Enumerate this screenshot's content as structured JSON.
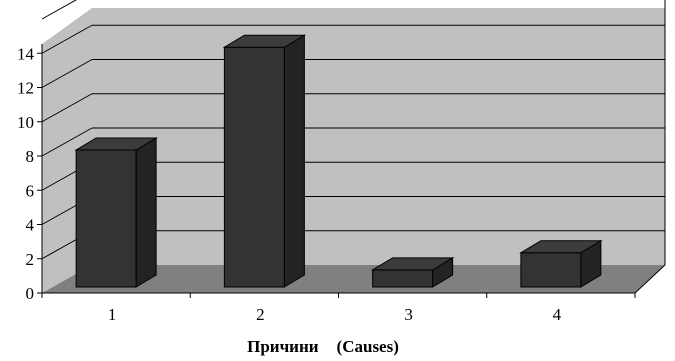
{
  "chart_data": {
    "type": "bar",
    "categories": [
      "1",
      "2",
      "3",
      "4"
    ],
    "values": [
      8,
      14,
      1,
      2
    ],
    "ylim": [
      0,
      16
    ],
    "yticks": [
      0,
      2,
      4,
      6,
      8,
      10,
      12,
      14
    ],
    "xlabel_parts": [
      "Причини",
      "(Causes)"
    ],
    "ylabel": "",
    "title": "",
    "grid": true,
    "legend": "none",
    "style": "3d-column",
    "colors": {
      "wall": "#c0c0c0",
      "floor": "#808080",
      "bar_front": "#333333",
      "bar_top": "#3c3c3c",
      "bar_side": "#232323",
      "gridline": "#000000"
    }
  }
}
